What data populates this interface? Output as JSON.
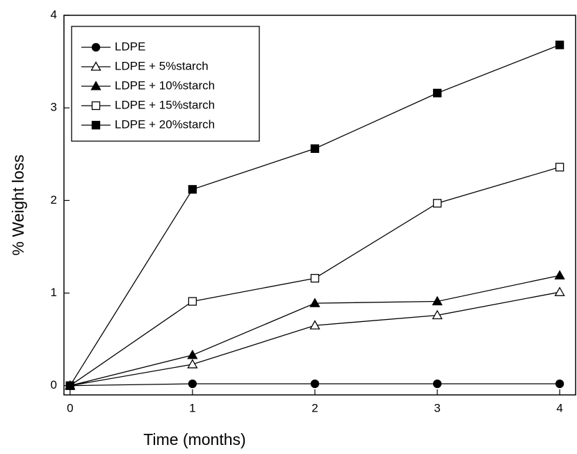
{
  "chart_data": {
    "type": "line",
    "xlabel": "Time (months)",
    "ylabel": "% Weight loss",
    "x": [
      0,
      1,
      2,
      3,
      4
    ],
    "series": [
      {
        "name": "LDPE",
        "color": "#000000",
        "marker": "circle",
        "filled": true,
        "values": [
          0,
          0.02,
          0.02,
          0.02,
          0.02
        ]
      },
      {
        "name": "LDPE + 5%starch",
        "color": "#000000",
        "marker": "triangle",
        "filled": false,
        "values": [
          0,
          0.23,
          0.65,
          0.76,
          1.01
        ]
      },
      {
        "name": "LDPE + 10%starch",
        "color": "#000000",
        "marker": "triangle",
        "filled": true,
        "values": [
          0,
          0.33,
          0.89,
          0.91,
          1.19
        ]
      },
      {
        "name": "LDPE + 15%starch",
        "color": "#000000",
        "marker": "square",
        "filled": false,
        "values": [
          0,
          0.91,
          1.16,
          1.97,
          2.36
        ]
      },
      {
        "name": "LDPE + 20%starch",
        "color": "#000000",
        "marker": "square",
        "filled": true,
        "values": [
          0,
          2.12,
          2.56,
          3.16,
          3.68
        ]
      }
    ],
    "xlim": [
      -0.05,
      4.13
    ],
    "xticks": [
      0,
      1,
      2,
      3,
      4
    ],
    "ylim": [
      -0.1,
      4
    ],
    "yticks": [
      0,
      1,
      2,
      3,
      4
    ],
    "legend": "upper left",
    "grid": false
  }
}
